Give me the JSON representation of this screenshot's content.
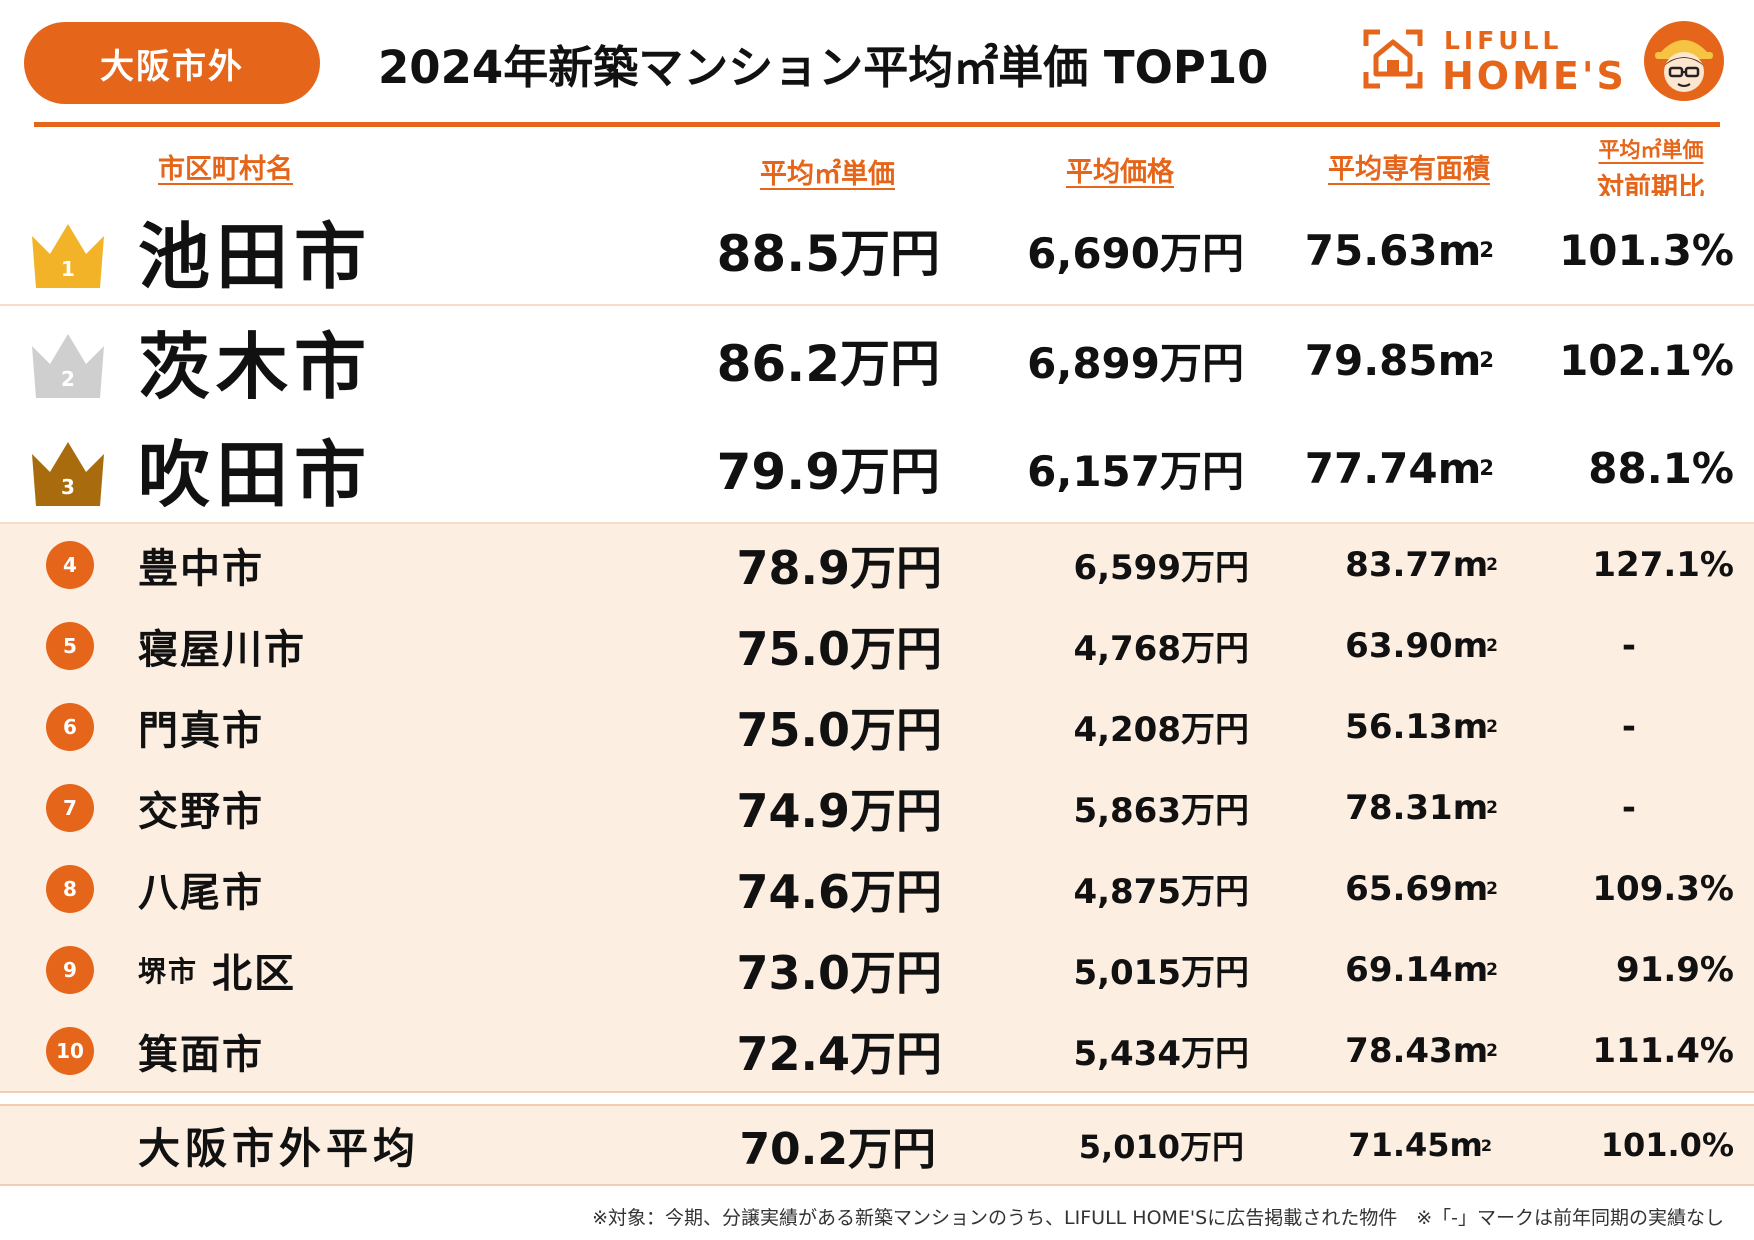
{
  "header": {
    "region_badge": "大阪市外",
    "title": "2024年新築マンション平均㎡単価 TOP10",
    "logo_top": "LIFULL",
    "logo_main": "HOME'S"
  },
  "columns": {
    "name": "市区町村名",
    "unit_price": "平均㎡単価",
    "avg_price": "平均価格",
    "avg_area": "平均専有面積",
    "ratio_line1": "平均㎡単価",
    "ratio_line2": "対前期比"
  },
  "colors": {
    "accent": "#e5661a",
    "gold": "#f2b329",
    "silver": "#cfcfcf",
    "bronze": "#a86b0e",
    "row_bg": "#fdeee2"
  },
  "rows": [
    {
      "rank": "1",
      "name": "池田市",
      "name_prefix": "",
      "unit_price": "88.5万円",
      "avg_price": "6,690万円",
      "area": "75.63",
      "ratio": "101.3%"
    },
    {
      "rank": "2",
      "name": "茨木市",
      "name_prefix": "",
      "unit_price": "86.2万円",
      "avg_price": "6,899万円",
      "area": "79.85",
      "ratio": "102.1%"
    },
    {
      "rank": "3",
      "name": "吹田市",
      "name_prefix": "",
      "unit_price": "79.9万円",
      "avg_price": "6,157万円",
      "area": "77.74",
      "ratio": "88.1%"
    },
    {
      "rank": "4",
      "name": "豊中市",
      "name_prefix": "",
      "unit_price": "78.9万円",
      "avg_price": "6,599万円",
      "area": "83.77",
      "ratio": "127.1%"
    },
    {
      "rank": "5",
      "name": "寝屋川市",
      "name_prefix": "",
      "unit_price": "75.0万円",
      "avg_price": "4,768万円",
      "area": "63.90",
      "ratio": "-"
    },
    {
      "rank": "6",
      "name": "門真市",
      "name_prefix": "",
      "unit_price": "75.0万円",
      "avg_price": "4,208万円",
      "area": "56.13",
      "ratio": "-"
    },
    {
      "rank": "7",
      "name": "交野市",
      "name_prefix": "",
      "unit_price": "74.9万円",
      "avg_price": "5,863万円",
      "area": "78.31",
      "ratio": "-"
    },
    {
      "rank": "8",
      "name": "八尾市",
      "name_prefix": "",
      "unit_price": "74.6万円",
      "avg_price": "4,875万円",
      "area": "65.69",
      "ratio": "109.3%"
    },
    {
      "rank": "9",
      "name": "北区",
      "name_prefix": "堺市",
      "unit_price": "73.0万円",
      "avg_price": "5,015万円",
      "area": "69.14",
      "ratio": "91.9%"
    },
    {
      "rank": "10",
      "name": "箕面市",
      "name_prefix": "",
      "unit_price": "72.4万円",
      "avg_price": "5,434万円",
      "area": "78.43",
      "ratio": "111.4%"
    }
  ],
  "average": {
    "name": "大阪市外平均",
    "unit_price": "70.2万円",
    "avg_price": "5,010万円",
    "area": "71.45",
    "ratio": "101.0%"
  },
  "area_unit": "m",
  "area_unit_sup": "2",
  "footnote": "※対象：今期、分譲実績がある新築マンションのうち、LIFULL HOME'Sに広告掲載された物件　※「-」マークは前年同期の実績なし"
}
